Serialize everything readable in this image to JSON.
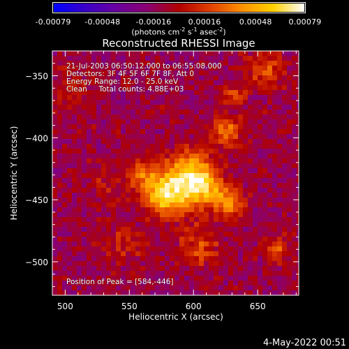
{
  "colorbar": {
    "ticks": [
      "-0.00079",
      "-0.00048",
      "-0.00016",
      "0.00016",
      "0.00048",
      "0.00079"
    ],
    "tick_values": [
      -0.00079,
      -0.00048,
      -0.00016,
      0.00016,
      0.00048,
      0.00079
    ],
    "range": [
      -0.00079,
      0.00079
    ],
    "units_prefix": "(photons cm",
    "units_exp1": "-2",
    "units_mid": " s",
    "units_exp2": "-1",
    "units_mid2": " asec",
    "units_exp3": "-2",
    "units_suffix": ")",
    "colors": [
      "#0000ff",
      "#3a00c8",
      "#6a00a0",
      "#8a0070",
      "#b00000",
      "#e04000",
      "#ff9000",
      "#ffd000",
      "#ffffff"
    ]
  },
  "chart_data": {
    "type": "heatmap",
    "title": "Reconstructed RHESSI Image",
    "xlabel": "Heliocentric X (arcsec)",
    "ylabel": "Heliocentric Y (arcsec)",
    "xlim": [
      490,
      682
    ],
    "ylim": [
      -527,
      -330
    ],
    "xticks": [
      500,
      550,
      600,
      650
    ],
    "yticks": [
      -350,
      -400,
      -450,
      -500
    ],
    "peak": {
      "x": 584,
      "y": -446
    },
    "sources": [
      {
        "x": 580,
        "y": -446,
        "value": 0.00079,
        "sigma": 12
      },
      {
        "x": 608,
        "y": -440,
        "value": 0.00062,
        "sigma": 11
      },
      {
        "x": 596,
        "y": -425,
        "value": 0.0005,
        "sigma": 12
      },
      {
        "x": 628,
        "y": -452,
        "value": 0.00048,
        "sigma": 8
      },
      {
        "x": 560,
        "y": -430,
        "value": 0.00035,
        "sigma": 9
      },
      {
        "x": 626,
        "y": -395,
        "value": 0.0004,
        "sigma": 9
      },
      {
        "x": 605,
        "y": -488,
        "value": 0.00028,
        "sigma": 12
      },
      {
        "x": 655,
        "y": -345,
        "value": 0.00032,
        "sigma": 10
      },
      {
        "x": 632,
        "y": -365,
        "value": 0.0004,
        "sigma": 5
      },
      {
        "x": 545,
        "y": -485,
        "value": 0.0002,
        "sigma": 11
      },
      {
        "x": 665,
        "y": -490,
        "value": 0.00034,
        "sigma": 7
      },
      {
        "x": 505,
        "y": -360,
        "value": 0.00018,
        "sigma": 10
      },
      {
        "x": 530,
        "y": -440,
        "value": 0.00012,
        "sigma": 12
      }
    ],
    "background": -0.00012
  },
  "annotations": {
    "time": "21-Jul-2003 06:50:12.000 to 06:55:08.000",
    "detectors": "Detectors: 3F 4F 5F 6F 7F 8F, Att 0",
    "energy": "Energy Range: 12.0 - 25.0 keV",
    "clean": "Clean     Total counts: 4.88E+03",
    "peak": "Position of Peak = [584,-446]"
  },
  "timestamp": "4-May-2022 00:51"
}
